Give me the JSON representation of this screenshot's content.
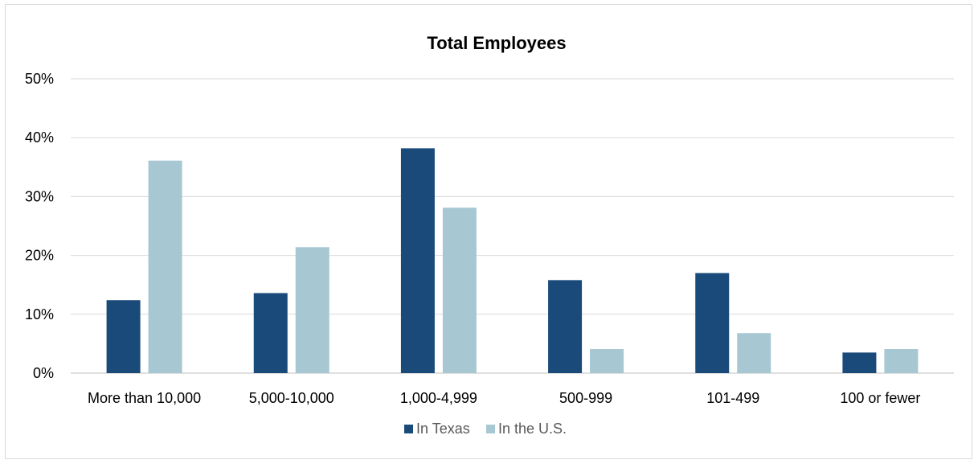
{
  "chart_data": {
    "type": "bar",
    "title": "Total Employees",
    "xlabel": "",
    "ylabel": "",
    "categories": [
      "More than 10,000",
      "5,000-10,000",
      "1,000-4,999",
      "500-999",
      "101-499",
      "100 or fewer"
    ],
    "series": [
      {
        "name": "In Texas",
        "color": "#1a4a7a",
        "values": [
          12.4,
          13.6,
          38.2,
          15.8,
          17.0,
          3.5
        ]
      },
      {
        "name": "In the U.S.",
        "color": "#a7c7d3",
        "values": [
          36.1,
          21.4,
          28.1,
          4.1,
          6.8,
          4.1
        ]
      }
    ],
    "ylim": [
      0,
      50
    ],
    "yticks": [
      0,
      10,
      20,
      30,
      40,
      50
    ],
    "ytick_labels": [
      "0%",
      "10%",
      "20%",
      "30%",
      "40%",
      "50%"
    ],
    "grid": true,
    "legend_position": "bottom"
  }
}
